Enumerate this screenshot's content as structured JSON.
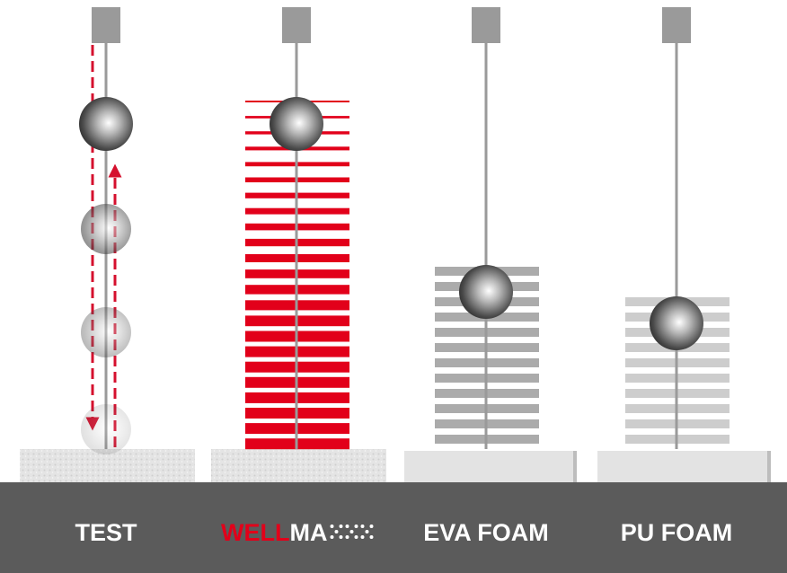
{
  "labels": {
    "test": "TEST",
    "wellmax_red": "WELL",
    "wellmax_white": "MA",
    "eva": "EVA FOAM",
    "pu": "PU FOAM"
  }
}
